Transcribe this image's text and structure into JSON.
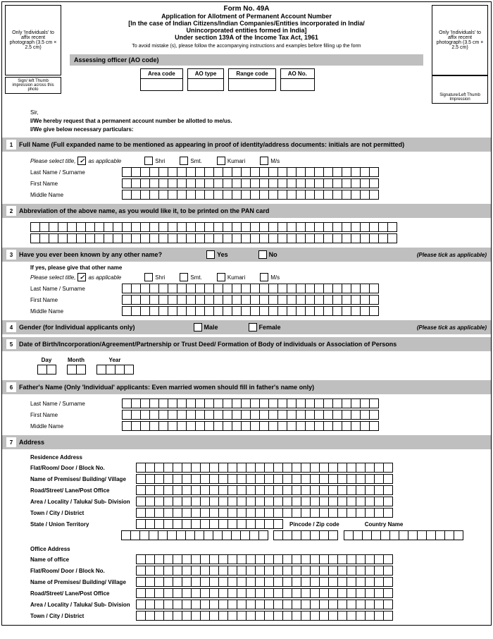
{
  "header": {
    "formNo": "Form No. 49A",
    "line1": "Application for Allotment of Permanent Account Number",
    "line2": "[In the  case of Indian Citizens/Indian Companies/Entities incorporated in India/",
    "line3": "Unincorporated entities formed in India]",
    "line4": "Under section 139A of the Income Tax Act, 1961",
    "line5": "To avoid mistake (s), please follow the accompanying instructions and examples before filling up the form",
    "photoLeft": "Only 'Individuals' to affix recent photograph (3.5 cm × 2.5 cm)",
    "photoRight": "Only 'Individuals' to affix recent photograph (3.5 cm × 2.5 cm)",
    "thumbNote": "Sign/ left Thumb impression across this photo",
    "sigNote": "Signature/Left Thumb Impression"
  },
  "ao": {
    "title": "Assessing officer  (AO code)",
    "cols": [
      "Area code",
      "AO type",
      "Range code",
      "AO No."
    ]
  },
  "intro": {
    "sir": "Sir,",
    "l1": "I/We hereby request that a permanent account number be allotted to me/us.",
    "l2": "I/We give below necessary particulars:"
  },
  "s1": {
    "title": "Full Name (Full expanded name to be mentioned as appearing in proof of identity/address documents: initials are not permitted)",
    "selTitle": "Please select title,",
    "asApp": "as applicable",
    "opts": [
      "Shri",
      "Smt.",
      "Kumari",
      "M/s"
    ],
    "last": "Last Name / Surname",
    "first": "First Name",
    "middle": "Middle Name"
  },
  "s2": {
    "title": "Abbreviation of the above name, as you would like it, to be printed on the PAN card"
  },
  "s3": {
    "title": "Have you ever been known by any other name?",
    "yes": "Yes",
    "no": "No",
    "tick": "(Please tick as applicable)",
    "ifyes": "If yes, please give that other name"
  },
  "s4": {
    "title": "Gender (for Individual applicants only)",
    "male": "Male",
    "female": "Female",
    "tick": "(Please tick as applicable)"
  },
  "s5": {
    "title": "Date of Birth/Incorporation/Agreement/Partnership or Trust Deed/ Formation of Body of individuals or Association of Persons",
    "day": "Day",
    "month": "Month",
    "year": "Year"
  },
  "s6": {
    "title": "Father's Name (Only 'Individual' applicants: Even married women should fill in father's name only)"
  },
  "s7": {
    "title": "Address",
    "res": "Residence Address",
    "off": "Office Address",
    "offName": "Name of office",
    "flat": "Flat/Room/ Door / Block No.",
    "prem": "Name of Premises/ Building/ Village",
    "road": "Road/Street/ Lane/Post Office",
    "area": "Area / Locality / Taluka/ Sub- Division",
    "town": "Town / City / District",
    "state": "State / Union Territory",
    "pin": "Pincode / Zip code",
    "country": "Country Name"
  },
  "boxCounts": {
    "name": 28,
    "abbr": 40,
    "addr": 28,
    "state": 16,
    "pin": 7,
    "country": 13,
    "day": 2,
    "month": 2,
    "year": 4
  }
}
